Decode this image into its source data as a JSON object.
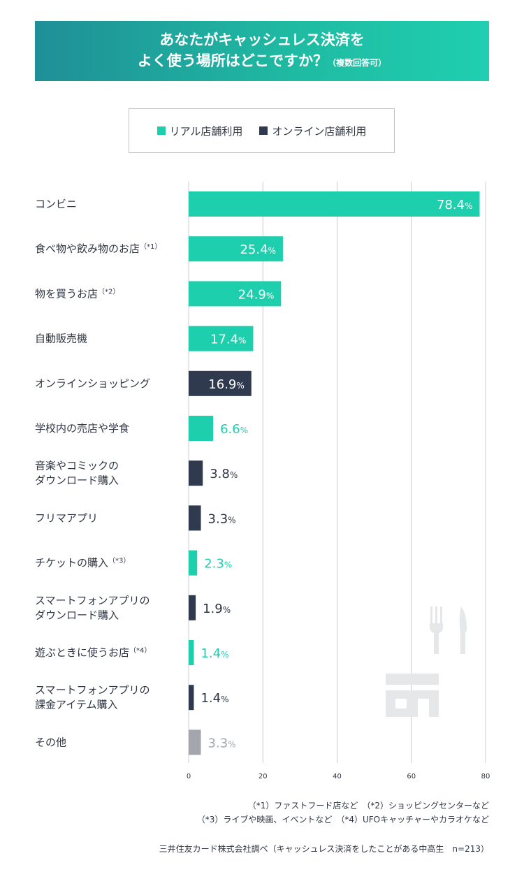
{
  "title": {
    "line1": "あなたがキャッシュレス決済を",
    "line2": "よく使う場所はどこですか？",
    "note": "（複数回答可）"
  },
  "legend": [
    {
      "label": "リアル店舗利用",
      "color": "#1ecfad"
    },
    {
      "label": "オンライン店舗利用",
      "color": "#2f3a4f"
    }
  ],
  "chart_data": {
    "type": "bar",
    "orientation": "horizontal",
    "xlim": [
      0,
      80
    ],
    "xticks": [
      0,
      20,
      40,
      60,
      80
    ],
    "unit": "%",
    "grid": true,
    "categories": [
      {
        "label": [
          "コンビニ"
        ],
        "note": "",
        "value": 78.4,
        "group": "real"
      },
      {
        "label": [
          "食べ物や飲み物のお店"
        ],
        "note": "（*1）",
        "value": 25.4,
        "group": "real"
      },
      {
        "label": [
          "物を買うお店"
        ],
        "note": "（*2）",
        "value": 24.9,
        "group": "real"
      },
      {
        "label": [
          "自動販売機"
        ],
        "note": "",
        "value": 17.4,
        "group": "real"
      },
      {
        "label": [
          "オンラインショッピング"
        ],
        "note": "",
        "value": 16.9,
        "group": "online"
      },
      {
        "label": [
          "学校内の売店や学食"
        ],
        "note": "",
        "value": 6.6,
        "group": "real"
      },
      {
        "label": [
          "音楽やコミックの",
          "ダウンロード購入"
        ],
        "note": "",
        "value": 3.8,
        "group": "online"
      },
      {
        "label": [
          "フリマアプリ"
        ],
        "note": "",
        "value": 3.3,
        "group": "online"
      },
      {
        "label": [
          "チケットの購入"
        ],
        "note": "（*3）",
        "value": 2.3,
        "group": "real"
      },
      {
        "label": [
          "スマートフォンアプリの",
          "ダウンロード購入"
        ],
        "note": "",
        "value": 1.9,
        "group": "online"
      },
      {
        "label": [
          "遊ぶときに使うお店"
        ],
        "note": "（*4）",
        "value": 1.4,
        "group": "real"
      },
      {
        "label": [
          "スマートフォンアプリの",
          "課金アイテム購入"
        ],
        "note": "",
        "value": 1.4,
        "group": "online"
      },
      {
        "label": [
          "その他"
        ],
        "note": "",
        "value": 3.3,
        "group": "other"
      }
    ]
  },
  "colors": {
    "real": "#1ecfad",
    "online": "#2f3a4f",
    "other": "#a3a7ad",
    "grid": "#c9ccd1",
    "icon": "#e6e7e9"
  },
  "icons": [
    "fork-knife-icon",
    "shop-icon"
  ],
  "footnotes": {
    "line1": "（*1）ファストフード店など　（*2）ショッピングセンターなど",
    "line2": "（*3）ライブや映画、イベントなど　（*4）UFOキャッチャーやカラオケなど"
  },
  "source": "三井住友カード株式会社調べ（キャッシュレス決済をしたことがある中高生　n=213）"
}
